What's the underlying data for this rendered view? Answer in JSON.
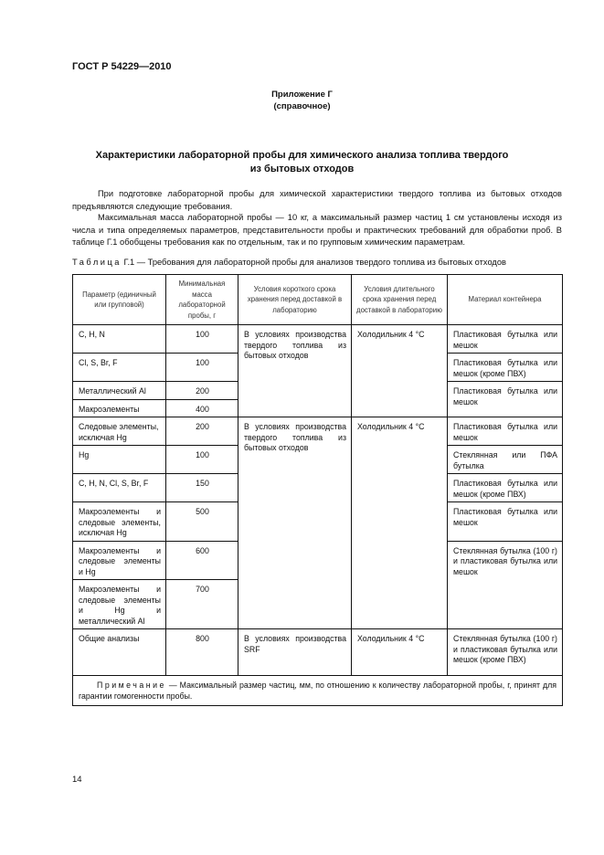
{
  "header": {
    "doc_code": "ГОСТ Р 54229—2010"
  },
  "appendix": {
    "title": "Приложение Г",
    "note": "(справочное)"
  },
  "title": {
    "line1": "Характеристики лабораторной пробы для химического анализа топлива твердого",
    "line2": "из бытовых отходов"
  },
  "paragraphs": [
    "При подготовке лабораторной пробы для химической характеристики твердого топлива из бытовых отходов предъявляются следующие требования.",
    "Максимальная масса лабораторной пробы — 10 кг, а максимальный размер частиц 1 см установлены исходя из числа и типа определяемых параметров, представительности пробы и практических требований для обработки проб. В таблице Г.1 обобщены требования как по отдельным, так и по групповым химическим параметрам."
  ],
  "table": {
    "caption_label": "Таблица",
    "caption_text": "Г.1 — Требования для лабораторной пробы для анализов твердого топлива из бытовых отходов",
    "columns": [
      "Параметр (единичный или групповой)",
      "Минимальная масса лабораторной пробы, г",
      "Условия короткого срока хранения перед доставкой в лабораторию",
      "Условия длительного срока хранения перед доставкой в лабораторию",
      "Материал контейнера"
    ],
    "rows": [
      {
        "param": "C, H, N",
        "mass": "100"
      },
      {
        "param": "Cl, S, Br, F",
        "mass": "100"
      },
      {
        "param": "Металлический Al",
        "mass": "200"
      },
      {
        "param": "Макроэлементы",
        "mass": "400"
      },
      {
        "param": "Следовые элементы, исключая Hg",
        "mass": "200"
      },
      {
        "param": "Hg",
        "mass": "100"
      },
      {
        "param": "C, H, N, Cl, S, Br, F",
        "mass": "150"
      },
      {
        "param": "Макроэлементы и следовые элементы, исключая Hg",
        "mass": "500"
      },
      {
        "param": "Макроэлементы и следовые элементы и Hg",
        "mass": "600"
      },
      {
        "param": "Макроэлементы и следовые элементы и Hg и металлический Al",
        "mass": "700"
      },
      {
        "param": "Общие анализы",
        "mass": "800"
      }
    ],
    "short_storage": [
      "В условиях производства твердого топлива из бытовых отходов",
      "В условиях производства твердого топлива из бытовых отходов",
      "В условиях производства SRF"
    ],
    "long_storage": [
      "Холодильник 4 °С",
      "Холодильник 4 °С",
      "Холодильник 4 °С"
    ],
    "containers": [
      "Пластиковая бутылка или мешок",
      "Пластиковая бутылка или мешок (кроме ПВХ)",
      "Пластиковая бутылка или мешок",
      "Пластиковая бутылка или мешок",
      "Стеклянная или ПФА бутылка",
      "Пластиковая бутылка или мешок (кроме ПВХ)",
      "Пластиковая бутылка или мешок",
      "Стеклянная бутылка (100 г) и пластиковая бутылка или мешок",
      "Стеклянная бутылка (100 г) и пластиковая бутылка или мешок (кроме ПВХ)"
    ],
    "note_label": "Примечание",
    "note_text": " — Максимальный размер частиц, мм, по отношению к количеству лабораторной пробы, г, принят для гарантии гомогенности пробы."
  },
  "footer": {
    "page_number": "14"
  }
}
